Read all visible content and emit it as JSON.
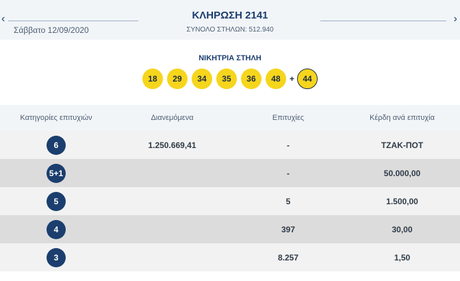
{
  "header": {
    "prev_arrow": "‹",
    "next_arrow": "›",
    "title": "ΚΛΗΡΩΣΗ 2141",
    "date": "Σάββατο 12/09/2020",
    "total_label": "ΣΥΝΟΛΟ ΣΤΗΛΩΝ: 512.940"
  },
  "winning": {
    "label": "ΝΙΚΗΤΡΙΑ ΣΤΗΛΗ",
    "numbers": [
      "18",
      "29",
      "34",
      "35",
      "36",
      "48"
    ],
    "plus": "+",
    "joker": "44",
    "colors": {
      "ball": "#f6d51d",
      "joker_border": "#1f2d3f"
    }
  },
  "table": {
    "headers": [
      "Κατηγορίες επιτυχιών",
      "Διανεμόμενα",
      "Επιτυχίες",
      "Κέρδη ανά επιτυχία"
    ],
    "rows": [
      {
        "category": "6",
        "distributed": "1.250.669,41",
        "winners": "-",
        "prize": "ΤΖΑΚ-ΠΟΤ"
      },
      {
        "category": "5+1",
        "distributed": "",
        "winners": "-",
        "prize": "50.000,00"
      },
      {
        "category": "5",
        "distributed": "",
        "winners": "5",
        "prize": "1.500,00"
      },
      {
        "category": "4",
        "distributed": "",
        "winners": "397",
        "prize": "30,00"
      },
      {
        "category": "3",
        "distributed": "",
        "winners": "8.257",
        "prize": "1,50"
      }
    ],
    "colors": {
      "badge": "#1b3e6e",
      "row_light": "#f2f2f2",
      "row_dark": "#dcdcdc"
    }
  }
}
